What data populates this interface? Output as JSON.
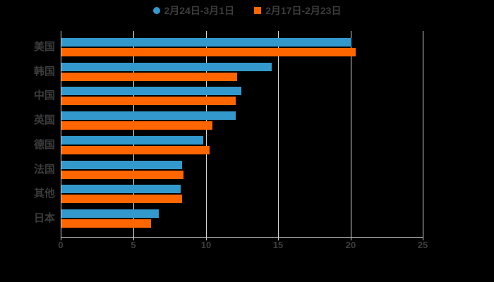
{
  "page": {
    "background": "#000000"
  },
  "chart_data": {
    "type": "bar",
    "orientation": "horizontal",
    "title": "",
    "categories": [
      "美国",
      "韩国",
      "中国",
      "英国",
      "德国",
      "法国",
      "其他",
      "日本"
    ],
    "series": [
      {
        "name": "2月24日-3月1日",
        "color": "#3399cc",
        "marker": "circle",
        "values": [
          20.0,
          14.5,
          12.4,
          12.0,
          9.8,
          8.3,
          8.2,
          6.7
        ]
      },
      {
        "name": "2月17日-2月23日",
        "color": "#ff6600",
        "marker": "square",
        "values": [
          20.3,
          12.1,
          12.0,
          10.4,
          10.2,
          8.4,
          8.3,
          6.2
        ]
      }
    ],
    "xlim": [
      0,
      25
    ],
    "xticks": [
      0,
      5,
      10,
      15,
      20,
      25
    ],
    "xtick_labels": [
      "0",
      "5",
      "10",
      "15",
      "20",
      "25"
    ],
    "grid": true,
    "legend_position": "top",
    "grid_color": "#d6d6d6",
    "axis_color": "#c9c9c9",
    "label_color": "#3d3d3d"
  }
}
